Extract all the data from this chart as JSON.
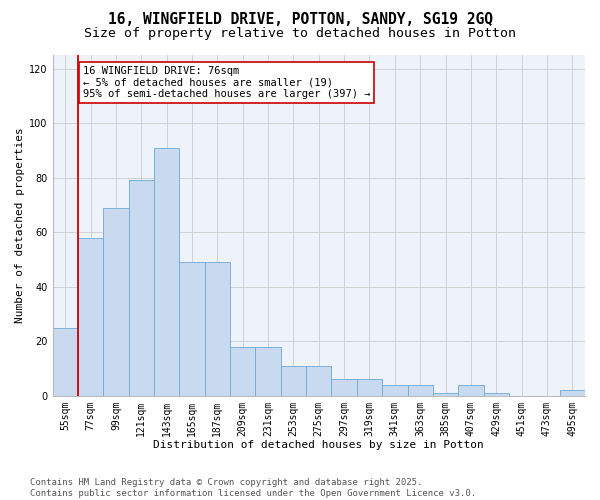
{
  "title_line1": "16, WINGFIELD DRIVE, POTTON, SANDY, SG19 2GQ",
  "title_line2": "Size of property relative to detached houses in Potton",
  "xlabel": "Distribution of detached houses by size in Potton",
  "ylabel": "Number of detached properties",
  "categories": [
    "55sqm",
    "77sqm",
    "99sqm",
    "121sqm",
    "143sqm",
    "165sqm",
    "187sqm",
    "209sqm",
    "231sqm",
    "253sqm",
    "275sqm",
    "297sqm",
    "319sqm",
    "341sqm",
    "363sqm",
    "385sqm",
    "407sqm",
    "429sqm",
    "451sqm",
    "473sqm",
    "495sqm"
  ],
  "values": [
    25,
    58,
    69,
    79,
    91,
    49,
    49,
    18,
    18,
    11,
    11,
    6,
    6,
    4,
    4,
    1,
    4,
    1,
    0,
    0,
    2
  ],
  "bar_color": "#c8d9f0",
  "bar_edge_color": "#6baad4",
  "grid_color": "#cccccc",
  "bg_color": "#eef2fb",
  "vline_color": "#cc0000",
  "vline_x_idx": 1,
  "annotation_text": "16 WINGFIELD DRIVE: 76sqm\n← 5% of detached houses are smaller (19)\n95% of semi-detached houses are larger (397) →",
  "annotation_box_color": "#ffffff",
  "annotation_border_color": "#cc0000",
  "ylim": [
    0,
    125
  ],
  "yticks": [
    0,
    20,
    40,
    60,
    80,
    100,
    120
  ],
  "footer_text": "Contains HM Land Registry data © Crown copyright and database right 2025.\nContains public sector information licensed under the Open Government Licence v3.0.",
  "title_fontsize": 10.5,
  "subtitle_fontsize": 9.5,
  "axis_label_fontsize": 8,
  "tick_fontsize": 7,
  "annotation_fontsize": 7.5,
  "footer_fontsize": 6.5
}
